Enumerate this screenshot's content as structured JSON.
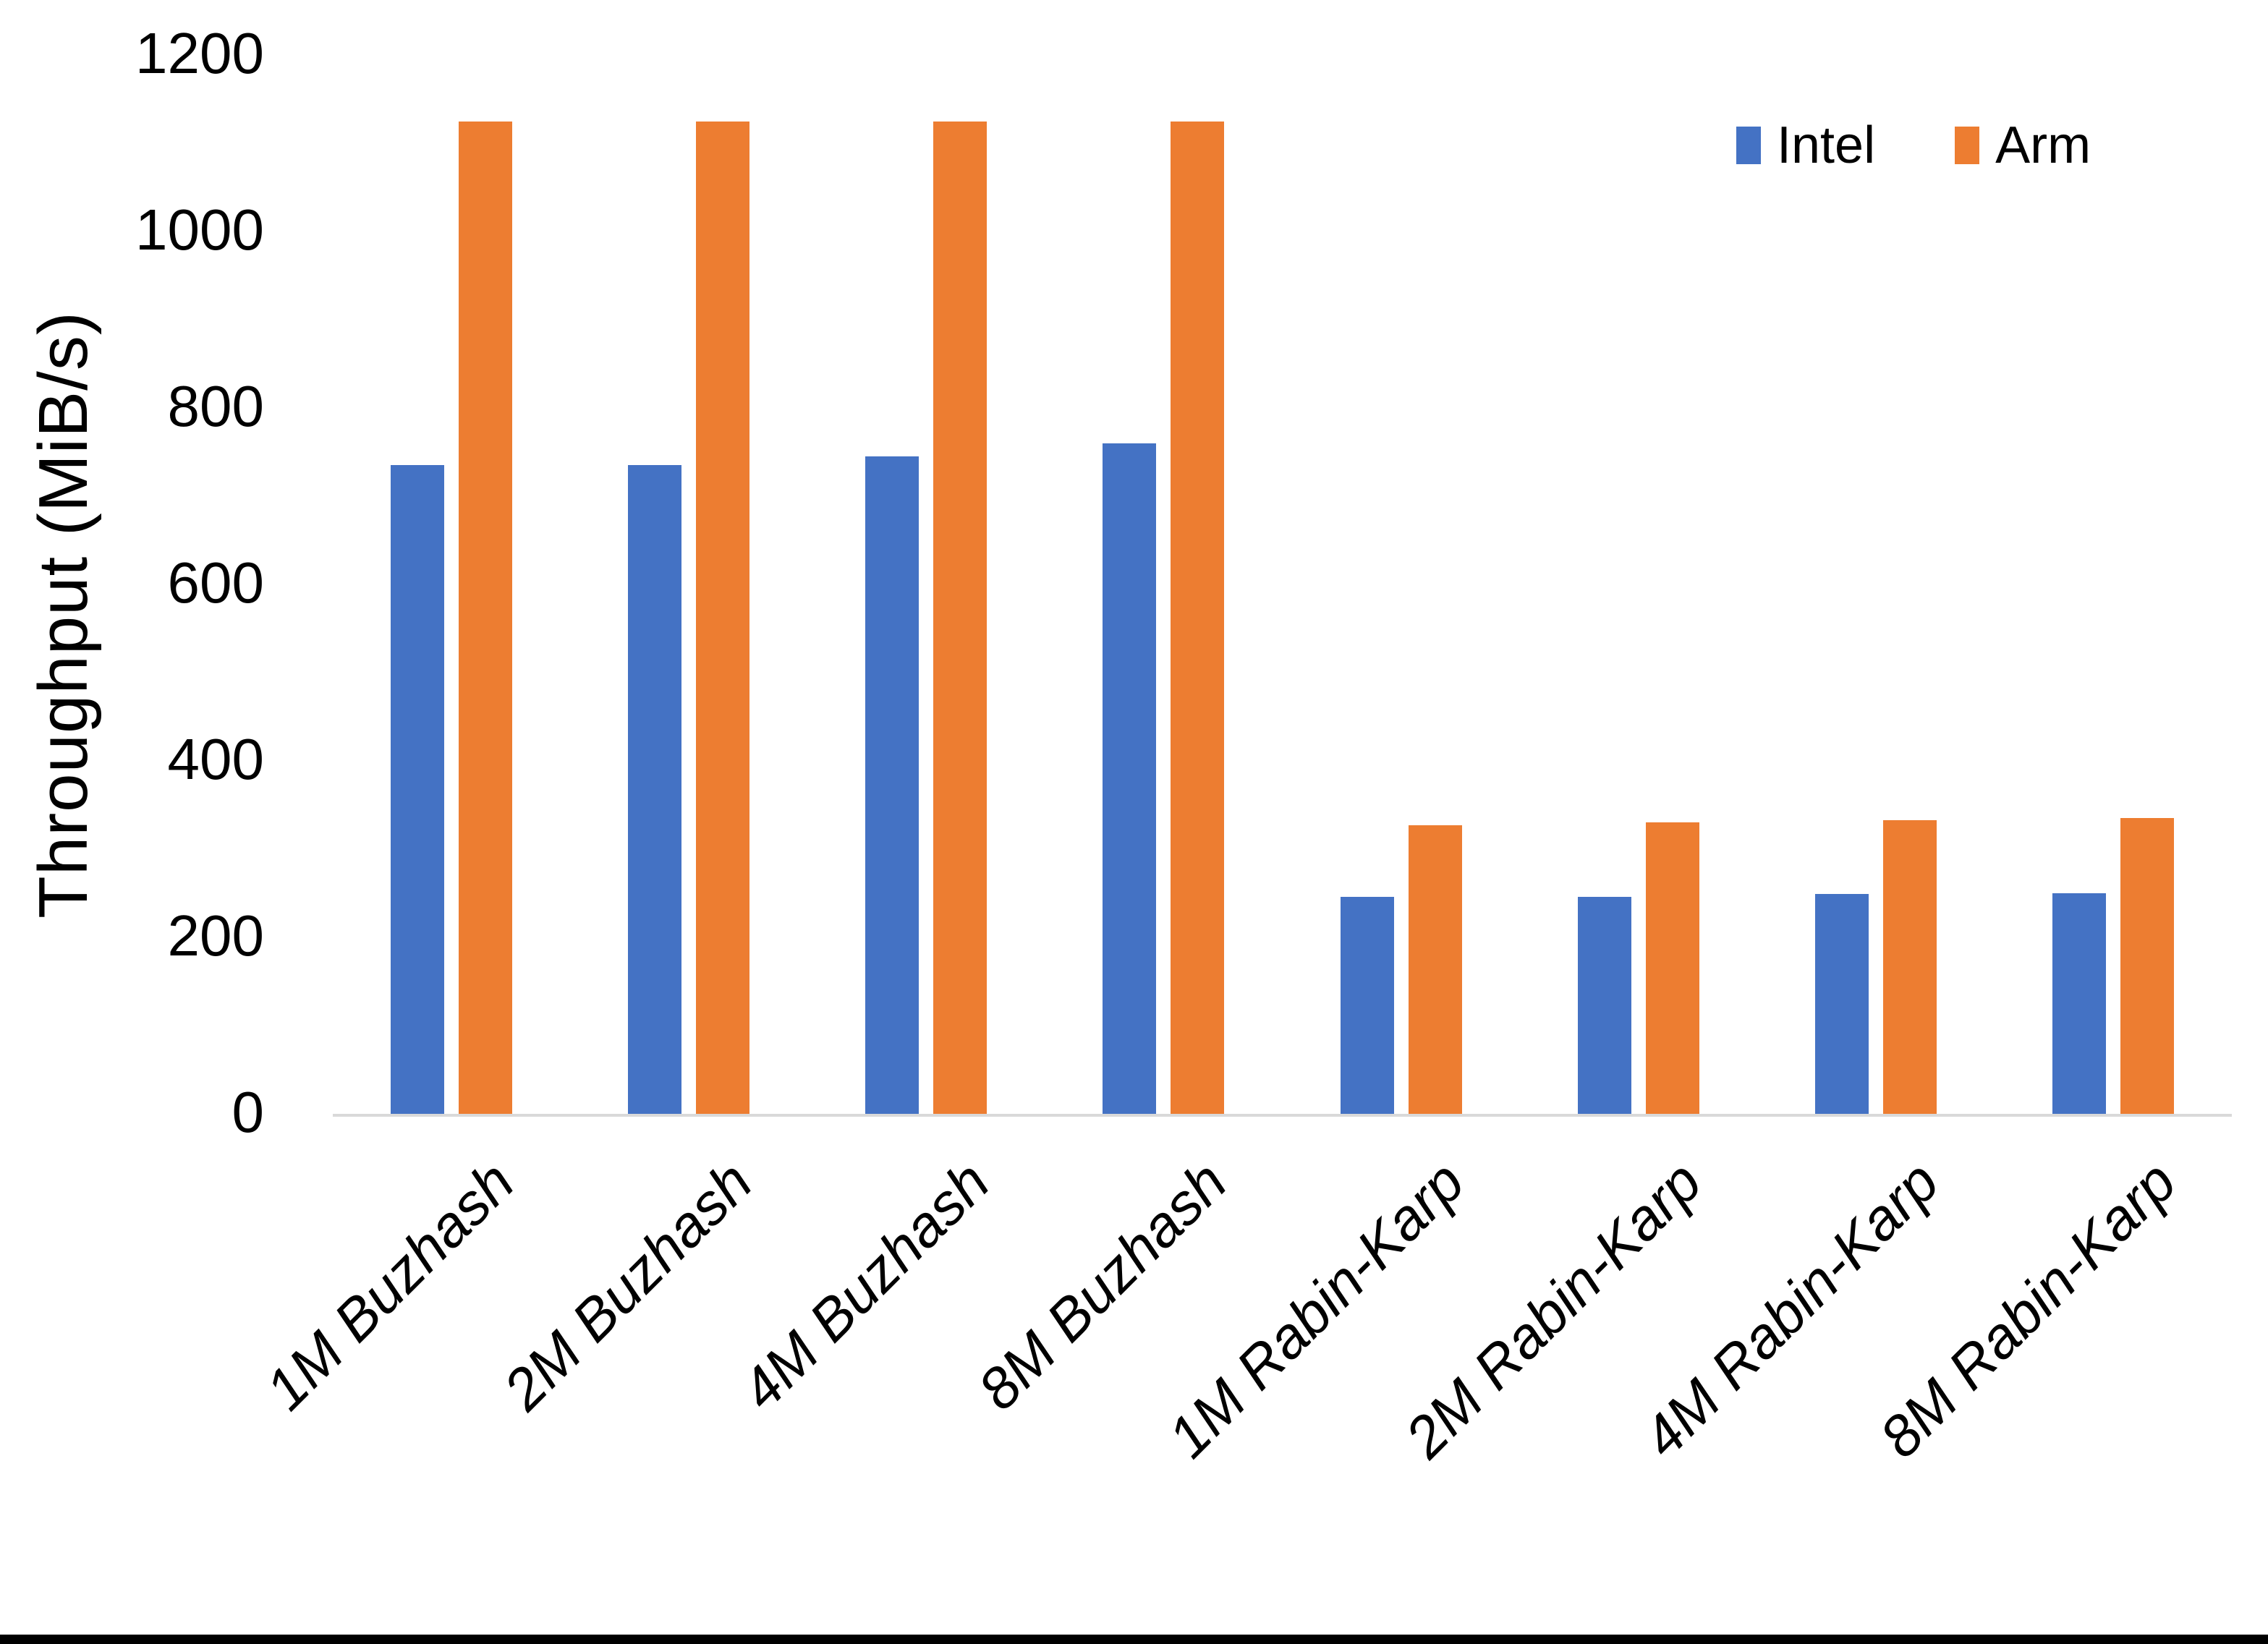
{
  "chart_data": {
    "type": "bar",
    "title": "",
    "categories": [
      "1M Buzhash",
      "2M Buzhash",
      "4M Buzhash",
      "8M Buzhash",
      "1M Rabin-Karp",
      "2M Rabin-Karp",
      "4M Rabin-Karp",
      "8M Rabin-Karp"
    ],
    "series": [
      {
        "name": "Intel",
        "color": "#4472C4",
        "values": [
          735,
          735,
          745,
          760,
          246,
          246,
          249,
          250
        ]
      },
      {
        "name": "Arm",
        "color": "#ED7D31",
        "values": [
          1125,
          1125,
          1125,
          1125,
          327,
          330,
          333,
          335
        ]
      }
    ],
    "xlabel": "",
    "ylabel": "Throughput (MiB/s)",
    "ylim": [
      0,
      1200
    ],
    "yticks": [
      0,
      200,
      400,
      600,
      800,
      1000,
      1200
    ],
    "grid": false,
    "legend_position": "top-right",
    "axis_baseline_color": "#D9D9D9",
    "background_color": "#FFFFFF"
  }
}
